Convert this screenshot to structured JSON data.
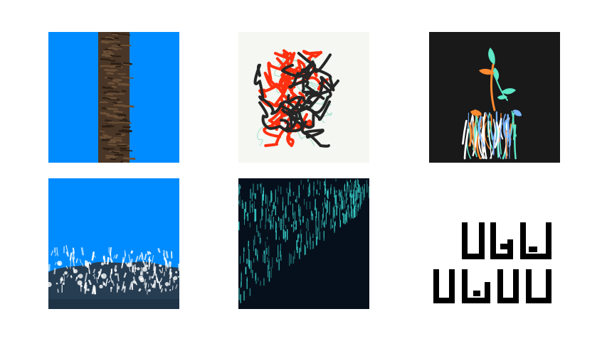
{
  "gallery": {
    "tiles": [
      {
        "id": "tree-trunk",
        "colors": {
          "background": "#008cff",
          "bark": "#4a3626",
          "bark_dark": "#2b1e14",
          "bark_light": "#6b5038"
        }
      },
      {
        "id": "scribble",
        "colors": {
          "background": "#f5f7f3",
          "red": "#ff3010",
          "black": "#262626",
          "mint": "#9fe0c8"
        }
      },
      {
        "id": "plant-figure",
        "colors": {
          "background": "#191919",
          "orange": "#ff8a30",
          "teal": "#5ee8c8",
          "blue": "#7ab4ff"
        }
      },
      {
        "id": "ocean-wave",
        "colors": {
          "sky": "#008cff",
          "foam": "#ffffff",
          "water": "#1e3346",
          "deep": "#263d52"
        }
      },
      {
        "id": "rain-lines",
        "colors": {
          "background": "#06101c",
          "line": "#39d6d0"
        }
      },
      {
        "id": "pixel-glyphs",
        "colors": {
          "background": "#ffffff",
          "ink": "#000000"
        }
      }
    ]
  }
}
